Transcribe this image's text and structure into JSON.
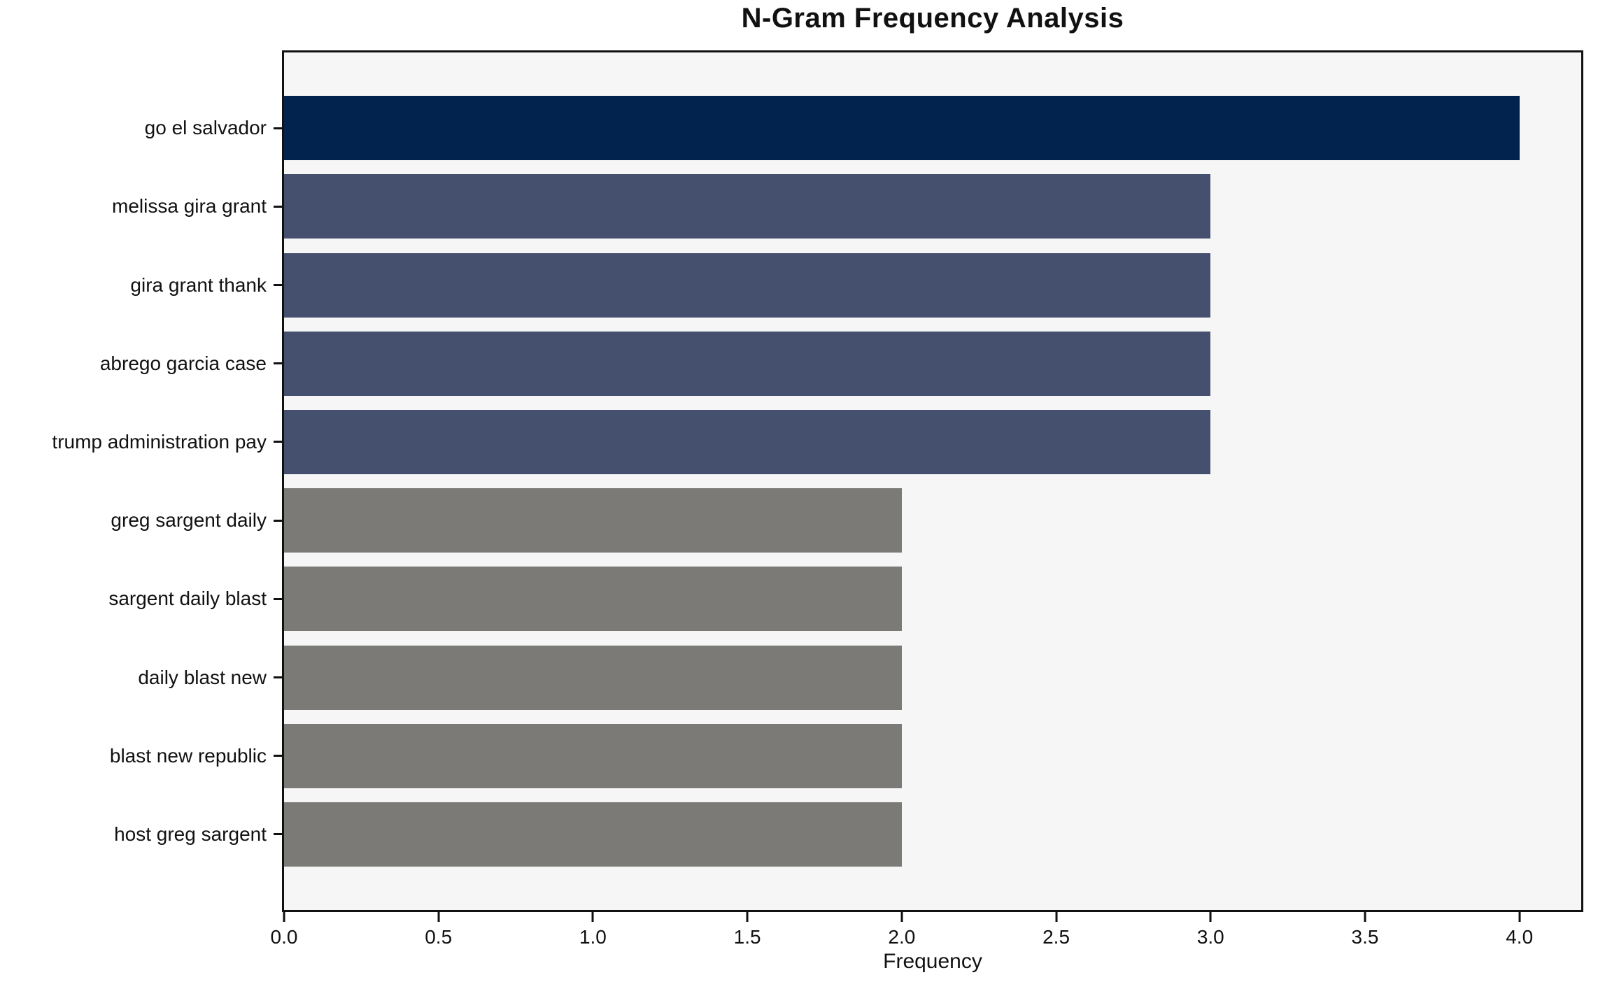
{
  "chart_data": {
    "type": "bar",
    "orientation": "horizontal",
    "title": "N-Gram Frequency Analysis",
    "xlabel": "Frequency",
    "ylabel": "",
    "categories": [
      "go el salvador",
      "melissa gira grant",
      "gira grant thank",
      "abrego garcia case",
      "trump administration pay",
      "greg sargent daily",
      "sargent daily blast",
      "daily blast new",
      "blast new republic",
      "host greg sargent"
    ],
    "values": [
      4,
      3,
      3,
      3,
      3,
      2,
      2,
      2,
      2,
      2
    ],
    "bar_colors": [
      "#02234e",
      "#45506e",
      "#45506e",
      "#45506e",
      "#45506e",
      "#7b7a77",
      "#7b7a77",
      "#7b7a77",
      "#7b7a77",
      "#7b7a77"
    ],
    "x_ticks": [
      "0.0",
      "0.5",
      "1.0",
      "1.5",
      "2.0",
      "2.5",
      "3.0",
      "3.5",
      "4.0"
    ],
    "xlim": [
      0,
      4.2
    ],
    "grid": false,
    "legend_position": "none",
    "plot_background": "#f6f6f6",
    "figure_background": "#ffffff",
    "axis_color": "#111111"
  }
}
